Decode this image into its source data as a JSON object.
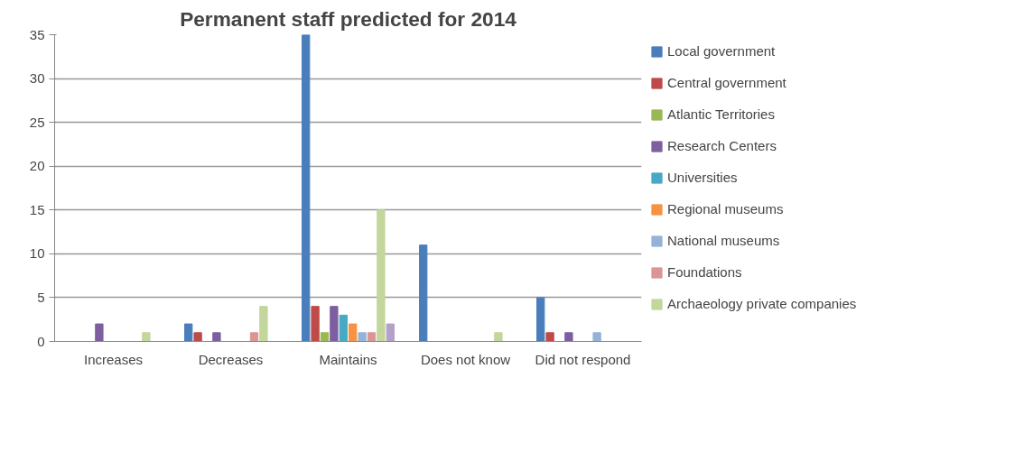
{
  "chart_data": {
    "type": "bar",
    "title": "Permanent staff predicted for 2014",
    "categories": [
      "Increases",
      "Decreases",
      "Maintains",
      "Does not know",
      "Did not respond"
    ],
    "series": [
      {
        "name": "Local government",
        "color": "#4a7ebb",
        "values": [
          null,
          2,
          35,
          11,
          5
        ]
      },
      {
        "name": "Central government",
        "color": "#be4b48",
        "values": [
          null,
          1,
          4,
          null,
          1
        ]
      },
      {
        "name": "Atlantic Territories",
        "color": "#98b954",
        "values": [
          null,
          null,
          1,
          null,
          null
        ]
      },
      {
        "name": "Research Centers",
        "color": "#7d5fa0",
        "values": [
          2,
          1,
          4,
          null,
          1
        ]
      },
      {
        "name": "Universities",
        "color": "#46aac5",
        "values": [
          null,
          null,
          3,
          null,
          null
        ]
      },
      {
        "name": "Regional museums",
        "color": "#f69240",
        "values": [
          null,
          null,
          2,
          null,
          null
        ]
      },
      {
        "name": "National museums",
        "color": "#95b3d7",
        "values": [
          null,
          null,
          1,
          null,
          1
        ]
      },
      {
        "name": "Foundations",
        "color": "#d99694",
        "values": [
          null,
          1,
          1,
          null,
          null
        ]
      },
      {
        "name": "Archaeology private companies",
        "color": "#c3d69b",
        "values": [
          1,
          4,
          15,
          1,
          null
        ]
      },
      {
        "color": "#b3a2c7",
        "values": [
          null,
          null,
          2,
          null,
          null
        ]
      }
    ],
    "ylim": [
      0,
      35
    ],
    "yticks": [
      0,
      5,
      10,
      15,
      20,
      25,
      30,
      35
    ],
    "grid": "y",
    "legend": "right"
  }
}
